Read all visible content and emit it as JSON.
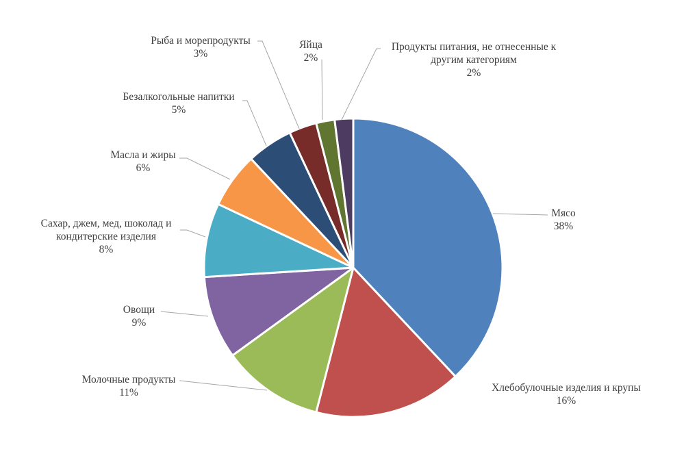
{
  "chart_data": {
    "type": "pie",
    "title": "",
    "categories": [
      "Мясо",
      "Хлебобулочные изделия и крупы",
      "Молочные продукты",
      "Овощи",
      "Сахар, джем, мед, шоколад и кондитерские изделия",
      "Масла и жиры",
      "Безалкогольные напитки",
      "Рыба и морепродукты",
      "Яйца",
      "Продукты питания, не отнесенные к другим категориям"
    ],
    "values": [
      38,
      16,
      11,
      9,
      8,
      6,
      5,
      3,
      2,
      2
    ],
    "unit": "%",
    "colors": [
      "#4F81BD",
      "#C0504D",
      "#9BBB59",
      "#8064A2",
      "#4BACC6",
      "#F79646",
      "#2C4D75",
      "#772C2A",
      "#5F7530",
      "#4D3B62"
    ],
    "start_angle_deg": 0,
    "direction": "clockwise",
    "legend": "none",
    "data_labels": "category and percentage with leader lines"
  },
  "labels": [
    {
      "name_lines": [
        "Мясо"
      ],
      "pct": "38%"
    },
    {
      "name_lines": [
        "Хлебобулочные изделия и крупы"
      ],
      "pct": "16%"
    },
    {
      "name_lines": [
        "Молочные продукты"
      ],
      "pct": "11%"
    },
    {
      "name_lines": [
        "Овощи"
      ],
      "pct": "9%"
    },
    {
      "name_lines": [
        "Сахар, джем, мед, шоколад и",
        "кондитерские изделия"
      ],
      "pct": "8%"
    },
    {
      "name_lines": [
        "Масла и жиры"
      ],
      "pct": "6%"
    },
    {
      "name_lines": [
        "Безалкогольные напитки"
      ],
      "pct": "5%"
    },
    {
      "name_lines": [
        "Рыба и морепродукты"
      ],
      "pct": "3%"
    },
    {
      "name_lines": [
        "Яйца"
      ],
      "pct": "2%"
    },
    {
      "name_lines": [
        "Продукты питания, не отнесенные к",
        "другим категориям"
      ],
      "pct": "2%"
    }
  ]
}
